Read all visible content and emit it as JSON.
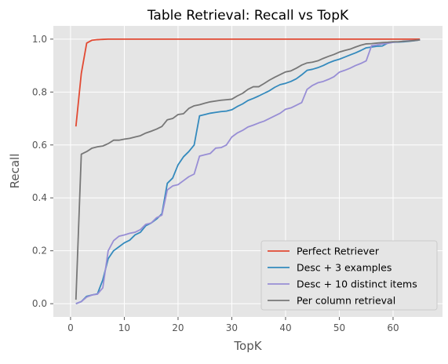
{
  "chart_data": {
    "type": "line",
    "title": "Table Retrieval: Recall vs TopK",
    "xlabel": "TopK",
    "ylabel": "Recall",
    "xlim": [
      -3.2,
      69.2
    ],
    "ylim": [
      -0.05,
      1.05
    ],
    "xticks": [
      0,
      10,
      20,
      30,
      40,
      50,
      60
    ],
    "yticks": [
      0.0,
      0.2,
      0.4,
      0.6,
      0.8,
      1.0
    ],
    "ytick_labels": [
      "0.0",
      "0.2",
      "0.4",
      "0.6",
      "0.8",
      "1.0"
    ],
    "grid": true,
    "legend_position": "lower-right",
    "x": [
      1,
      2,
      3,
      4,
      5,
      6,
      7,
      8,
      9,
      10,
      11,
      12,
      13,
      14,
      15,
      16,
      17,
      18,
      19,
      20,
      21,
      22,
      23,
      24,
      25,
      26,
      27,
      28,
      29,
      30,
      31,
      32,
      33,
      34,
      35,
      36,
      37,
      38,
      39,
      40,
      41,
      42,
      43,
      44,
      45,
      46,
      47,
      48,
      49,
      50,
      51,
      52,
      53,
      54,
      55,
      56,
      57,
      58,
      59,
      60,
      61,
      62,
      63,
      64,
      65
    ],
    "series": [
      {
        "name": "Perfect Retriever",
        "color": "#E24A33",
        "values": [
          0.67,
          0.87,
          0.985,
          0.996,
          0.998,
          0.999,
          1,
          1,
          1,
          1,
          1,
          1,
          1,
          1,
          1,
          1,
          1,
          1,
          1,
          1,
          1,
          1,
          1,
          1,
          1,
          1,
          1,
          1,
          1,
          1,
          1,
          1,
          1,
          1,
          1,
          1,
          1,
          1,
          1,
          1,
          1,
          1,
          1,
          1,
          1,
          1,
          1,
          1,
          1,
          1,
          1,
          1,
          1,
          1,
          1,
          1,
          1,
          1,
          1,
          1,
          1,
          1,
          1,
          1,
          1
        ]
      },
      {
        "name": "Desc + 3 examples",
        "color": "#348ABD",
        "values": [
          0.0,
          0.008,
          0.028,
          0.033,
          0.037,
          0.09,
          0.17,
          0.2,
          0.215,
          0.23,
          0.24,
          0.26,
          0.27,
          0.295,
          0.305,
          0.32,
          0.34,
          0.455,
          0.475,
          0.525,
          0.555,
          0.575,
          0.6,
          0.71,
          0.715,
          0.72,
          0.723,
          0.726,
          0.728,
          0.733,
          0.745,
          0.755,
          0.768,
          0.776,
          0.785,
          0.795,
          0.805,
          0.818,
          0.828,
          0.833,
          0.84,
          0.85,
          0.865,
          0.882,
          0.886,
          0.892,
          0.9,
          0.91,
          0.918,
          0.924,
          0.932,
          0.94,
          0.948,
          0.957,
          0.967,
          0.97,
          0.973,
          0.974,
          0.985,
          0.988,
          0.989,
          0.99,
          0.992,
          0.994,
          0.997
        ]
      },
      {
        "name": "Desc + 10 distinct items",
        "color": "#988ED5",
        "values": [
          0.0,
          0.008,
          0.025,
          0.033,
          0.036,
          0.06,
          0.2,
          0.238,
          0.255,
          0.26,
          0.266,
          0.27,
          0.28,
          0.3,
          0.305,
          0.325,
          0.335,
          0.43,
          0.445,
          0.45,
          0.465,
          0.48,
          0.49,
          0.558,
          0.563,
          0.568,
          0.588,
          0.59,
          0.6,
          0.63,
          0.645,
          0.655,
          0.668,
          0.675,
          0.683,
          0.69,
          0.7,
          0.71,
          0.72,
          0.735,
          0.74,
          0.75,
          0.76,
          0.81,
          0.825,
          0.835,
          0.84,
          0.848,
          0.858,
          0.875,
          0.882,
          0.89,
          0.9,
          0.908,
          0.918,
          0.975,
          0.978,
          0.982,
          0.984,
          0.988,
          0.99,
          0.992,
          0.994,
          0.995,
          0.997
        ]
      },
      {
        "name": "Per column retrieval",
        "color": "#777777",
        "values": [
          0.015,
          0.565,
          0.575,
          0.588,
          0.593,
          0.596,
          0.605,
          0.618,
          0.618,
          0.622,
          0.625,
          0.63,
          0.635,
          0.645,
          0.652,
          0.66,
          0.67,
          0.695,
          0.7,
          0.715,
          0.718,
          0.738,
          0.748,
          0.752,
          0.758,
          0.763,
          0.766,
          0.769,
          0.771,
          0.773,
          0.785,
          0.795,
          0.81,
          0.82,
          0.82,
          0.832,
          0.845,
          0.856,
          0.866,
          0.876,
          0.88,
          0.89,
          0.902,
          0.91,
          0.913,
          0.918,
          0.927,
          0.935,
          0.942,
          0.951,
          0.957,
          0.962,
          0.97,
          0.977,
          0.982,
          0.983,
          0.985,
          0.987,
          0.988,
          0.99,
          0.99,
          0.992,
          0.993,
          0.995,
          0.997
        ]
      }
    ]
  },
  "colors": {
    "plot_bg": "#E5E5E5",
    "grid": "#FFFFFF",
    "tick_text": "#555555",
    "label_text": "#555555",
    "title_text": "#000000"
  }
}
